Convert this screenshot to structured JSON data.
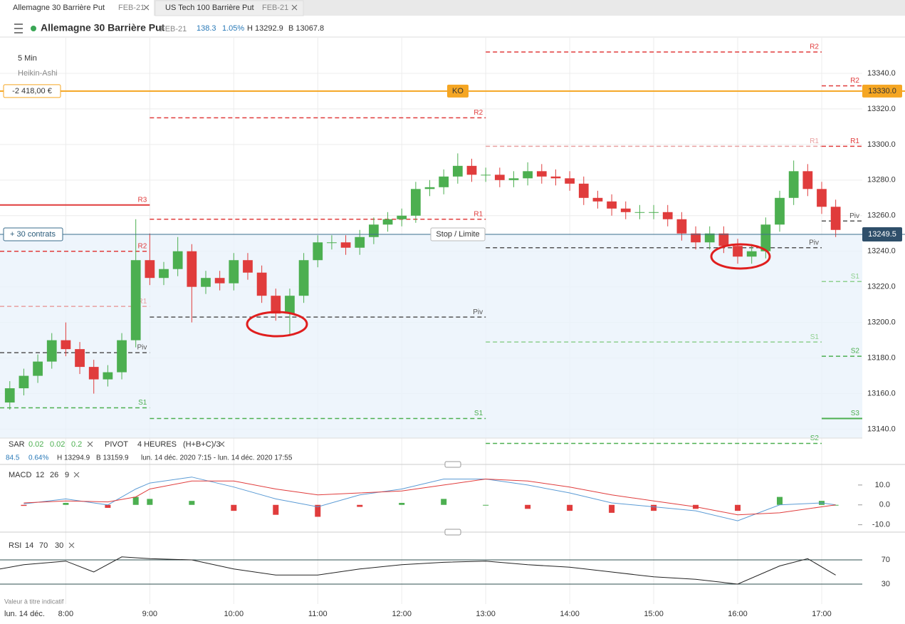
{
  "tabs": [
    {
      "title": "Allemagne 30 Barrière Put",
      "expiry": "FEB-21"
    },
    {
      "title": "US Tech 100 Barrière Put",
      "expiry": "FEB-21"
    }
  ],
  "header": {
    "title": "Allemagne 30 Barrière Put",
    "expiry": "FEB-21",
    "change": "138.3",
    "change_pct": "1.05%",
    "high": "H 13292.9",
    "low": "B 13067.8"
  },
  "settings": {
    "interval": "5 Min",
    "candle_style": "Heikin-Ashi"
  },
  "indicators": {
    "sar": {
      "name": "SAR",
      "params": [
        "0.02",
        "0.02",
        "0.2"
      ]
    },
    "pivot": {
      "name": "PIVOT",
      "period": "4 HEURES",
      "formula": "(H+B+C)/3"
    },
    "info": {
      "change": "84.5",
      "change_pct": "0.64%",
      "high": "H 13294.9",
      "low": "B 13159.9",
      "range": "lun. 14 déc. 2020 7:15 - lun. 14 déc. 2020 17:55"
    }
  },
  "footer": {
    "note": "Valeur à titre indicatif",
    "date": "lun. 14 déc."
  },
  "chart_data": [
    {
      "type": "candlestick",
      "xlim": [
        "7:13",
        "17:29"
      ],
      "ylim": [
        13135,
        13360
      ],
      "xticks": [
        "8:00",
        "9:00",
        "10:00",
        "11:00",
        "12:00",
        "13:00",
        "14:00",
        "15:00",
        "16:00",
        "17:00"
      ],
      "yticks": [
        {
          "value": 13140,
          "label": "13140.0"
        },
        {
          "value": 13160,
          "label": "13160.0"
        },
        {
          "value": 13180,
          "label": "13180.0"
        },
        {
          "value": 13200,
          "label": "13200.0"
        },
        {
          "value": 13220,
          "label": "13220.0"
        },
        {
          "value": 13240,
          "label": "13240.0"
        },
        {
          "value": 13260,
          "label": "13260.0"
        },
        {
          "value": 13280,
          "label": "13280.0"
        },
        {
          "value": 13300,
          "label": "13300.0"
        },
        {
          "value": 13320,
          "label": "13320.0"
        },
        {
          "value": 13340,
          "label": "13340.0"
        }
      ],
      "grid": true,
      "up_color": "#4caf50",
      "down_color": "#e03c3c",
      "x": [
        "7:20",
        "7:30",
        "7:40",
        "7:50",
        "8:00",
        "8:10",
        "8:20",
        "8:30",
        "8:40",
        "8:50",
        "9:00",
        "9:10",
        "9:20",
        "9:30",
        "9:40",
        "9:50",
        "10:00",
        "10:10",
        "10:20",
        "10:30",
        "10:40",
        "10:50",
        "11:00",
        "11:10",
        "11:20",
        "11:30",
        "11:40",
        "11:50",
        "12:00",
        "12:10",
        "12:20",
        "12:30",
        "12:40",
        "12:50",
        "13:00",
        "13:10",
        "13:20",
        "13:30",
        "13:40",
        "13:50",
        "14:00",
        "14:10",
        "14:20",
        "14:30",
        "14:40",
        "14:50",
        "15:00",
        "15:10",
        "15:20",
        "15:30",
        "15:40",
        "15:50",
        "16:00",
        "16:10",
        "16:20",
        "16:30",
        "16:40",
        "16:50",
        "17:00",
        "17:10"
      ],
      "open": [
        13155,
        13163,
        13170,
        13178,
        13190,
        13185,
        13175,
        13168,
        13172,
        13190,
        13235,
        13225,
        13230,
        13240,
        13220,
        13225,
        13222,
        13235,
        13228,
        13215,
        13205,
        13215,
        13235,
        13245,
        13245,
        13242,
        13248,
        13255,
        13258,
        13260,
        13275,
        13276,
        13282,
        13288,
        13283,
        13283,
        13280,
        13281,
        13285,
        13282,
        13281,
        13278,
        13270,
        13268,
        13264,
        13262,
        13262,
        13262,
        13258,
        13250,
        13245,
        13250,
        13243,
        13237,
        13240,
        13255,
        13270,
        13285,
        13275,
        13265
      ],
      "high": [
        13167,
        13174,
        13182,
        13194,
        13200,
        13189,
        13179,
        13176,
        13194,
        13258,
        13250,
        13234,
        13248,
        13244,
        13229,
        13229,
        13239,
        13239,
        13232,
        13219,
        13219,
        13239,
        13249,
        13249,
        13249,
        13252,
        13259,
        13262,
        13264,
        13279,
        13280,
        13286,
        13295,
        13292,
        13287,
        13287,
        13285,
        13290,
        13289,
        13286,
        13285,
        13282,
        13274,
        13272,
        13268,
        13266,
        13266,
        13266,
        13262,
        13254,
        13254,
        13254,
        13247,
        13244,
        13259,
        13274,
        13291,
        13289,
        13279,
        13269
      ],
      "low": [
        13151,
        13159,
        13166,
        13174,
        13181,
        13171,
        13160,
        13164,
        13168,
        13186,
        13221,
        13221,
        13226,
        13200,
        13216,
        13218,
        13218,
        13224,
        13211,
        13201,
        13193,
        13211,
        13231,
        13241,
        13238,
        13238,
        13244,
        13251,
        13254,
        13256,
        13271,
        13272,
        13278,
        13279,
        13279,
        13276,
        13276,
        13277,
        13278,
        13277,
        13274,
        13266,
        13264,
        13260,
        13258,
        13258,
        13258,
        13254,
        13246,
        13241,
        13241,
        13239,
        13233,
        13233,
        13236,
        13251,
        13266,
        13271,
        13261,
        13248
      ],
      "close": [
        13163,
        13170,
        13178,
        13190,
        13185,
        13175,
        13168,
        13172,
        13190,
        13235,
        13225,
        13230,
        13240,
        13220,
        13225,
        13222,
        13235,
        13228,
        13215,
        13205,
        13215,
        13235,
        13245,
        13245,
        13242,
        13248,
        13255,
        13258,
        13260,
        13275,
        13276,
        13282,
        13288,
        13283,
        13283,
        13280,
        13281,
        13285,
        13282,
        13281,
        13278,
        13270,
        13268,
        13264,
        13262,
        13262,
        13262,
        13258,
        13250,
        13245,
        13250,
        13243,
        13237,
        13240,
        13255,
        13270,
        13285,
        13275,
        13265,
        13252
      ],
      "pivots": [
        {
          "label": "R3",
          "value": 13266,
          "from": "7:13",
          "to": "9:00",
          "color": "#e03c3c",
          "dashed": false
        },
        {
          "label": "R2",
          "value": 13240,
          "from": "7:13",
          "to": "9:00",
          "color": "#e03c3c",
          "dashed": true
        },
        {
          "label": "R1",
          "value": 13209,
          "from": "7:13",
          "to": "9:00",
          "color": "#e8a0a0",
          "dashed": true
        },
        {
          "label": "Piv",
          "value": 13183,
          "from": "7:13",
          "to": "9:00",
          "color": "#555555",
          "dashed": true
        },
        {
          "label": "S1",
          "value": 13152,
          "from": "7:13",
          "to": "9:00",
          "color": "#4caf50",
          "dashed": true
        },
        {
          "label": "R2",
          "value": 13315,
          "from": "9:00",
          "to": "13:00",
          "color": "#e03c3c",
          "dashed": true
        },
        {
          "label": "R1",
          "value": 13258,
          "from": "9:00",
          "to": "13:00",
          "color": "#e03c3c",
          "dashed": true
        },
        {
          "label": "Piv",
          "value": 13203,
          "from": "9:00",
          "to": "13:00",
          "color": "#555555",
          "dashed": true
        },
        {
          "label": "S1",
          "value": 13146,
          "from": "9:00",
          "to": "13:00",
          "color": "#4caf50",
          "dashed": true
        },
        {
          "label": "R2",
          "value": 13352,
          "from": "13:00",
          "to": "17:00",
          "color": "#e03c3c",
          "dashed": true
        },
        {
          "label": "R1",
          "value": 13299,
          "from": "13:00",
          "to": "17:00",
          "color": "#e8a0a0",
          "dashed": true
        },
        {
          "label": "Piv",
          "value": 13242,
          "from": "13:00",
          "to": "17:00",
          "color": "#555555",
          "dashed": true
        },
        {
          "label": "S1",
          "value": 13189,
          "from": "13:00",
          "to": "17:00",
          "color": "#8fd08f",
          "dashed": true
        },
        {
          "label": "S2",
          "value": 13132,
          "from": "13:00",
          "to": "17:00",
          "color": "#4caf50",
          "dashed": true
        },
        {
          "label": "R2",
          "value": 13333,
          "from": "17:00",
          "to": "17:29",
          "color": "#e03c3c",
          "dashed": true
        },
        {
          "label": "R1",
          "value": 13299,
          "from": "17:00",
          "to": "17:29",
          "color": "#e03c3c",
          "dashed": true
        },
        {
          "label": "Piv",
          "value": 13257,
          "from": "17:00",
          "to": "17:29",
          "color": "#555555",
          "dashed": true
        },
        {
          "label": "S1",
          "value": 13223,
          "from": "17:00",
          "to": "17:29",
          "color": "#8fd08f",
          "dashed": true
        },
        {
          "label": "S2",
          "value": 13181,
          "from": "17:00",
          "to": "17:29",
          "color": "#4caf50",
          "dashed": true
        },
        {
          "label": "S3",
          "value": 13146,
          "from": "17:00",
          "to": "17:29",
          "color": "#4caf50",
          "dashed": false
        }
      ],
      "knockout": {
        "label": "KO",
        "value": 13330,
        "value_label": "13330.0",
        "pnl": "-2 418,00 €",
        "color": "#f5a623"
      },
      "current": {
        "value": 13249.5,
        "position": "+ 30 contrats",
        "order": "Stop / Limite",
        "color": "#3a6d8c"
      }
    },
    {
      "type": "line",
      "title": "MACD",
      "params": [
        12,
        26,
        9
      ],
      "ylim": [
        -13,
        20
      ],
      "yticks": [
        {
          "value": 10,
          "label": "10.0"
        },
        {
          "value": 0,
          "label": "0.0"
        },
        {
          "value": -10,
          "label": "-10.0"
        }
      ],
      "x": [
        "7:30",
        "8:00",
        "8:30",
        "8:50",
        "9:00",
        "9:30",
        "10:00",
        "10:30",
        "11:00",
        "11:30",
        "12:00",
        "12:30",
        "13:00",
        "13:30",
        "14:00",
        "14:30",
        "15:00",
        "15:30",
        "16:00",
        "16:30",
        "17:00",
        "17:10"
      ],
      "series": [
        {
          "color": "#5b9bd5",
          "values": [
            0.5,
            3,
            0,
            8,
            11,
            14,
            9,
            3,
            -1,
            5,
            8,
            13,
            13,
            10,
            6,
            1,
            -1,
            -3,
            -8,
            0,
            1,
            0
          ]
        },
        {
          "color": "#e03c3c",
          "values": [
            1,
            2,
            1.5,
            4,
            8,
            12,
            12,
            8,
            5,
            6,
            7,
            10,
            13,
            12,
            9,
            5,
            2,
            -1,
            -5,
            -4,
            -1,
            0
          ]
        }
      ],
      "histogram": [
        -0.5,
        1,
        -1.5,
        4,
        3,
        2,
        -3,
        -5,
        -6,
        -1,
        1,
        3,
        0,
        -2,
        -3,
        -4,
        -3,
        -2,
        -3,
        4,
        2,
        0
      ],
      "positive_color": "#4caf50",
      "negative_color": "#e03c3c"
    },
    {
      "type": "line",
      "title": "RSI",
      "params": [
        14,
        70,
        30
      ],
      "ylim": [
        0,
        100
      ],
      "yticks": [
        30,
        70
      ],
      "x": [
        "7:13",
        "7:30",
        "8:00",
        "8:20",
        "8:40",
        "9:00",
        "9:30",
        "10:00",
        "10:30",
        "11:00",
        "11:30",
        "12:00",
        "12:30",
        "13:00",
        "13:30",
        "14:00",
        "14:30",
        "15:00",
        "15:30",
        "16:00",
        "16:30",
        "16:50",
        "17:10"
      ],
      "series": [
        {
          "color": "#222222",
          "values": [
            55,
            62,
            68,
            50,
            75,
            72,
            70,
            55,
            45,
            45,
            55,
            62,
            66,
            68,
            62,
            58,
            50,
            42,
            38,
            30,
            60,
            72,
            45
          ]
        }
      ]
    }
  ]
}
